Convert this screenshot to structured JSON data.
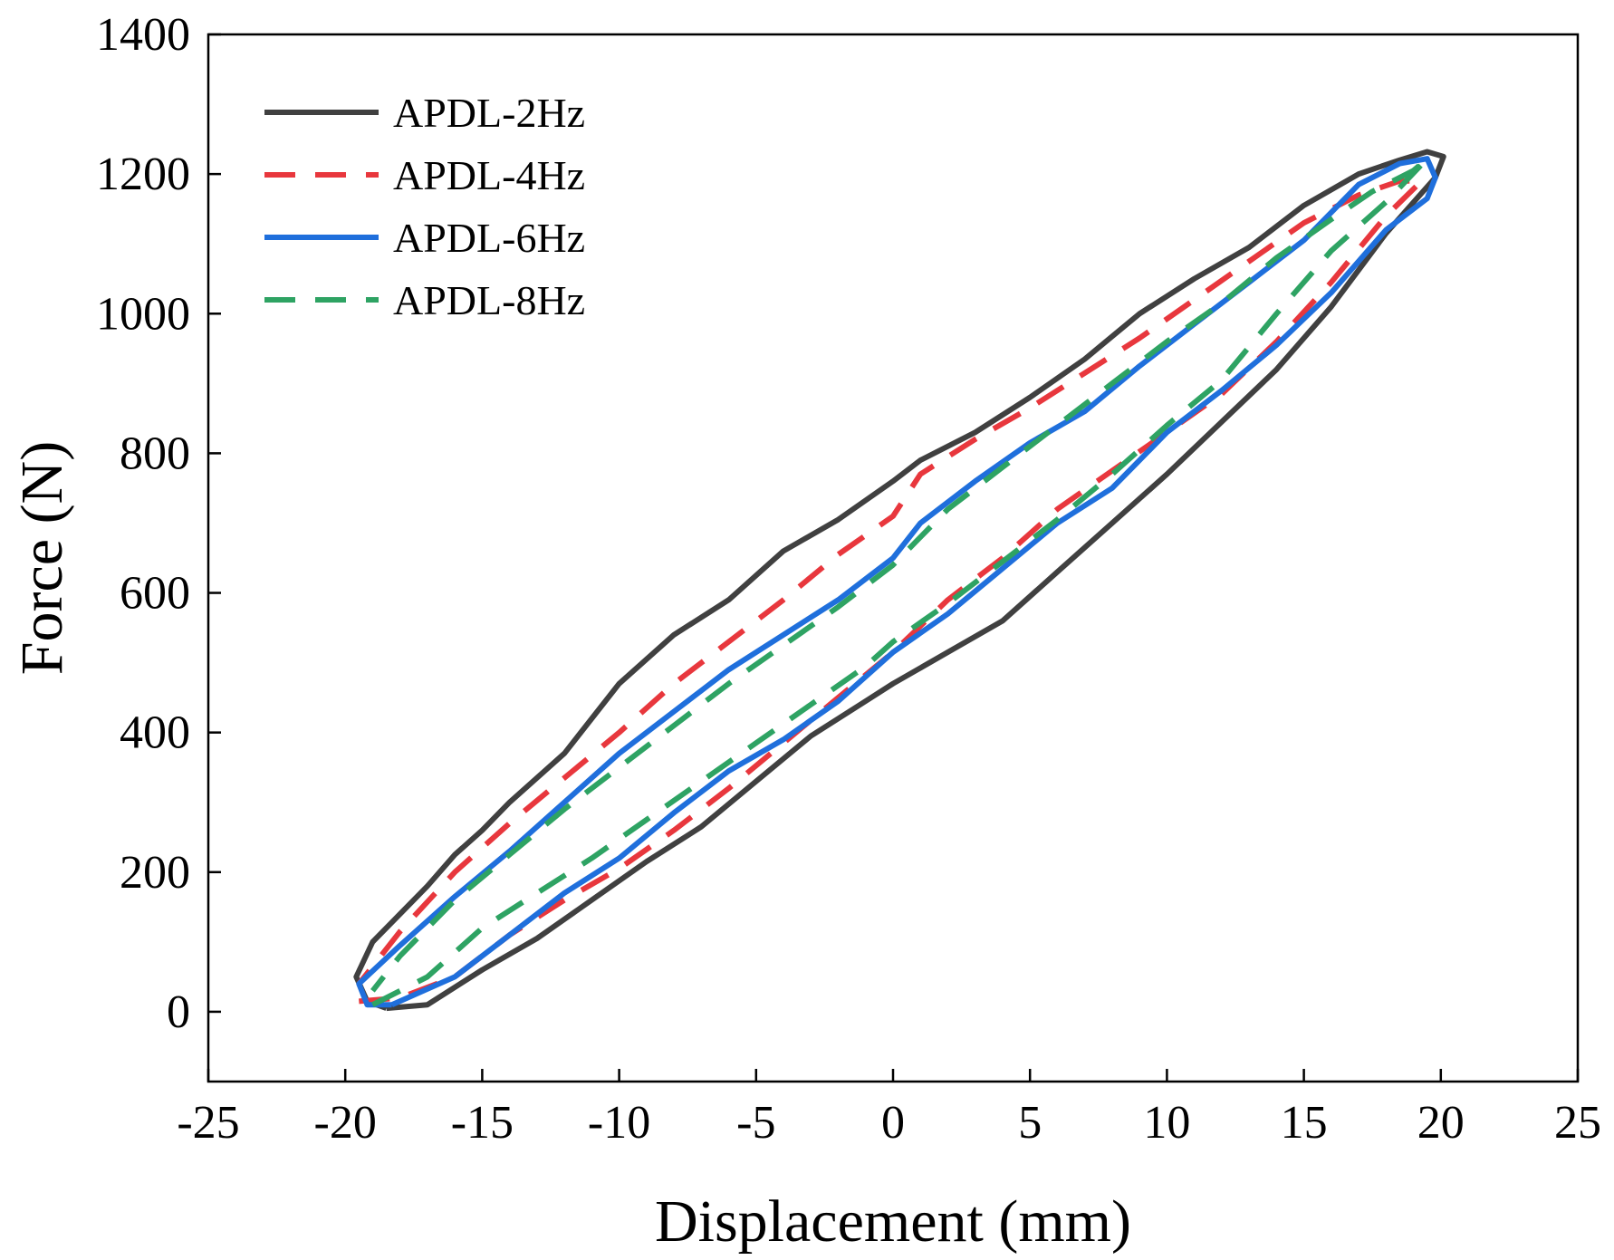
{
  "chart_data": {
    "type": "line",
    "title": "",
    "xlabel": "Displacement (mm)",
    "ylabel": "Force (N)",
    "xlim": [
      -25,
      25
    ],
    "ylim": [
      -100,
      1400
    ],
    "xticks": [
      -25,
      -20,
      -15,
      -10,
      -5,
      0,
      5,
      10,
      15,
      20,
      25
    ],
    "yticks": [
      0,
      200,
      400,
      600,
      800,
      1000,
      1200,
      1400
    ],
    "xtick_labels": [
      "-25",
      "-20",
      "-15",
      "-10",
      "-5",
      "0",
      "5",
      "10",
      "15",
      "20",
      "25"
    ],
    "ytick_labels": [
      "0",
      "200",
      "400",
      "600",
      "800",
      "1000",
      "1200",
      "1400"
    ],
    "grid": false,
    "legend_position": "top-left",
    "series": [
      {
        "name": "APDL-2Hz",
        "color": "#404040",
        "dash": "solid",
        "x": [
          -18.5,
          -17,
          -15,
          -13,
          -11,
          -9,
          -7,
          -5,
          -3,
          -1,
          0,
          2,
          4,
          6,
          8,
          10,
          12,
          14,
          16,
          18,
          19.8,
          20.1,
          19.5,
          18.5,
          17,
          15,
          13,
          11,
          9,
          7,
          5,
          3,
          1,
          0,
          -2,
          -4,
          -6,
          -8,
          -10,
          -12,
          -14,
          -15,
          -16,
          -17,
          -18,
          -19,
          -19.6,
          -19.2,
          -18.5
        ],
        "y": [
          5,
          10,
          60,
          105,
          160,
          215,
          265,
          330,
          395,
          445,
          470,
          515,
          560,
          630,
          700,
          770,
          845,
          920,
          1010,
          1115,
          1195,
          1225,
          1232,
          1220,
          1200,
          1155,
          1095,
          1050,
          1000,
          935,
          880,
          830,
          790,
          760,
          705,
          660,
          590,
          540,
          470,
          370,
          300,
          260,
          225,
          180,
          140,
          100,
          50,
          15,
          5
        ]
      },
      {
        "name": "APDL-4Hz",
        "color": "#e8373d",
        "dash": "dashed",
        "x": [
          -19.5,
          -18,
          -16,
          -14,
          -12,
          -10,
          -8,
          -6,
          -4,
          -2,
          0,
          2,
          4,
          6,
          8,
          10,
          12,
          14,
          16,
          18,
          19.3,
          18.5,
          17,
          15,
          13,
          11,
          9,
          7,
          5,
          3,
          1,
          0,
          -2,
          -4,
          -6,
          -8,
          -10,
          -12,
          -14,
          -16,
          -18,
          -19.5
        ],
        "y": [
          15,
          20,
          50,
          110,
          160,
          205,
          260,
          320,
          385,
          450,
          515,
          590,
          650,
          720,
          775,
          830,
          885,
          960,
          1045,
          1140,
          1190,
          1190,
          1170,
          1130,
          1075,
          1020,
          965,
          915,
          865,
          820,
          770,
          710,
          655,
          590,
          530,
          470,
          400,
          335,
          270,
          200,
          115,
          40
        ]
      },
      {
        "name": "APDL-6Hz",
        "color": "#1f6fdc",
        "dash": "solid",
        "x": [
          -18.3,
          -16,
          -14,
          -12,
          -10,
          -8,
          -6,
          -4,
          -2,
          0,
          2,
          4,
          6,
          8,
          10,
          12,
          14,
          16,
          18,
          19.5,
          19.8,
          19.5,
          18.5,
          17,
          15,
          13,
          11,
          9,
          7,
          5,
          3,
          1,
          0,
          -2,
          -4,
          -6,
          -8,
          -10,
          -12,
          -14,
          -16,
          -18,
          -19.5,
          -19.2,
          -18.3
        ],
        "y": [
          10,
          50,
          110,
          170,
          220,
          285,
          345,
          390,
          445,
          515,
          570,
          635,
          700,
          750,
          830,
          890,
          955,
          1030,
          1120,
          1165,
          1195,
          1222,
          1215,
          1185,
          1105,
          1045,
          985,
          925,
          860,
          815,
          760,
          700,
          650,
          590,
          540,
          490,
          430,
          370,
          300,
          230,
          165,
          95,
          40,
          10,
          10
        ]
      },
      {
        "name": "APDL-8Hz",
        "color": "#2ea363",
        "dash": "dashed",
        "x": [
          -19,
          -17,
          -15,
          -13,
          -11,
          -9,
          -7,
          -5,
          -3,
          -1,
          0,
          2,
          4,
          6,
          8,
          10,
          12,
          14,
          16,
          18,
          19.5,
          19,
          17.5,
          16,
          14,
          12,
          10,
          8,
          6,
          4,
          2,
          0,
          -2,
          -4,
          -6,
          -8,
          -10,
          -12,
          -14,
          -16,
          -18,
          -19
        ],
        "y": [
          10,
          50,
          120,
          170,
          220,
          275,
          330,
          385,
          440,
          495,
          530,
          585,
          645,
          705,
          770,
          840,
          905,
          1000,
          1090,
          1160,
          1222,
          1205,
          1175,
          1135,
          1080,
          1015,
          960,
          900,
          840,
          780,
          720,
          640,
          580,
          525,
          470,
          410,
          350,
          290,
          225,
          160,
          80,
          30
        ]
      }
    ]
  }
}
